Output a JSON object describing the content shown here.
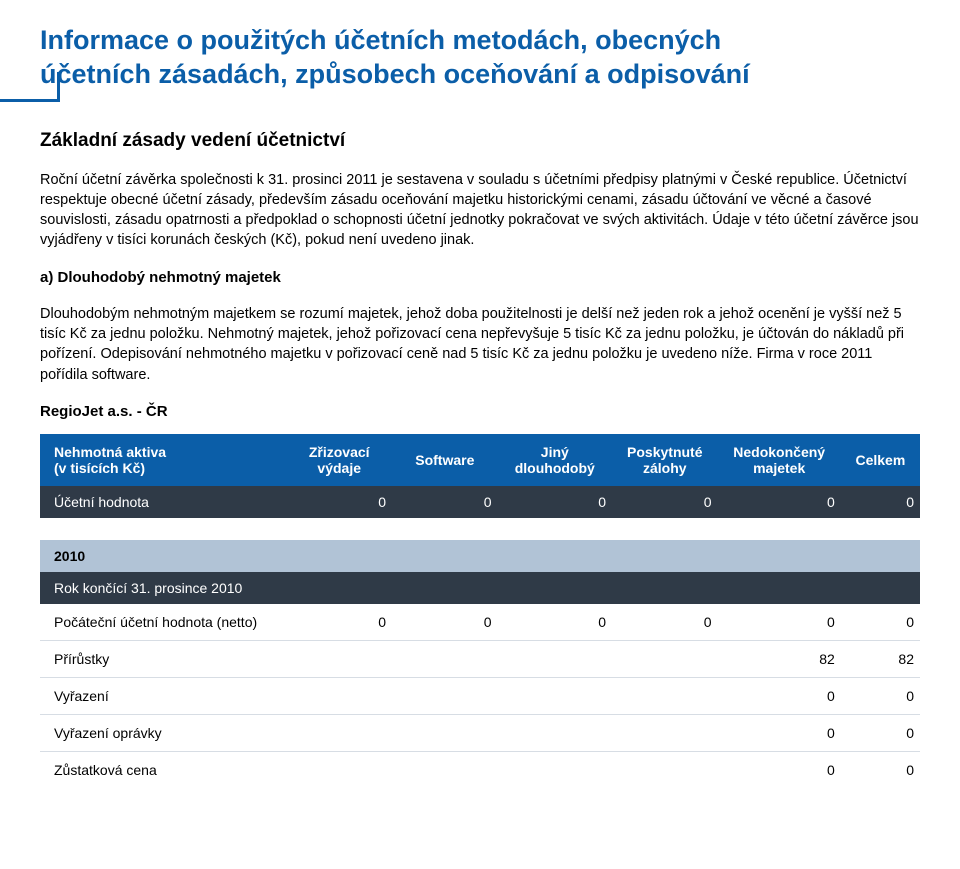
{
  "colors": {
    "accent": "#0b5ea8",
    "dark_band": "#2f3a47",
    "light_band": "#b1c3d6",
    "text": "#000000",
    "bg": "#ffffff",
    "row_divider": "#d7dde4"
  },
  "title": {
    "line1": "Informace o použitých účetních metodách, obecných",
    "line2": "účetních zásadách, způsobech oceňování a odpisování"
  },
  "section_heading": "Základní zásady vedení účetnictví",
  "para1": "Roční účetní závěrka společnosti k 31. prosinci 2011 je sestavena v souladu s účetními předpisy platnými v České republice. Účetnictví respektuje obecné účetní zásady, především zásadu oceňování majetku historickými cenami, zásadu účtování ve věcné a časové souvislosti, zásadu opatrnosti a předpoklad o schopnosti účetní jednotky pokračovat ve svých aktivitách. Údaje v této účetní závěrce jsou vyjádřeny v tisíci korunách českých (Kč), pokud není uvedeno jinak.",
  "subhead_a": "a) Dlouhodobý nehmotný majetek",
  "para2": "Dlouhodobým nehmotným majetkem se rozumí majetek, jehož doba použitelnosti je delší než jeden rok a jehož ocenění je vyšší než 5 tisíc Kč za jednu položku. Nehmotný majetek, jehož pořizovací cena nepřevyšuje 5 tisíc Kč za jednu položku, je účtován do nákladů při pořízení. Odepisování nehmotného majetku v pořizovací ceně nad 5 tisíc Kč za jednu položku je uvedeno níže. Firma v roce 2011 pořídila software.",
  "company_label": "RegioJet a.s. - ČR",
  "table": {
    "columns": [
      {
        "line1": "Nehmotná aktiva",
        "line2": "(v tisících Kč)"
      },
      {
        "line1": "Zřizovací",
        "line2": "výdaje"
      },
      {
        "line1": "Software",
        "line2": ""
      },
      {
        "line1": "Jiný",
        "line2": "dlouhodobý"
      },
      {
        "line1": "Poskytnuté",
        "line2": "zálohy"
      },
      {
        "line1": "Nedokončený",
        "line2": "majetek"
      },
      {
        "line1": "Celkem",
        "line2": ""
      }
    ],
    "book_value_row": {
      "label": "Účetní hodnota",
      "values": [
        "0",
        "0",
        "0",
        "0",
        "0",
        "0"
      ]
    },
    "year_label": "2010",
    "year_sub": "Rok končící 31. prosince 2010",
    "rows": [
      {
        "label": "Počáteční účetní hodnota (netto)",
        "values": [
          "0",
          "0",
          "0",
          "0",
          "0",
          "0"
        ]
      },
      {
        "label": "Přírůstky",
        "values": [
          "",
          "",
          "",
          "",
          "82",
          "82"
        ]
      },
      {
        "label": "Vyřazení",
        "values": [
          "",
          "",
          "",
          "",
          "0",
          "0"
        ]
      },
      {
        "label": "Vyřazení oprávky",
        "values": [
          "",
          "",
          "",
          "",
          "0",
          "0"
        ]
      },
      {
        "label": "Zůstatková cena",
        "values": [
          "",
          "",
          "",
          "",
          "0",
          "0"
        ]
      }
    ]
  }
}
